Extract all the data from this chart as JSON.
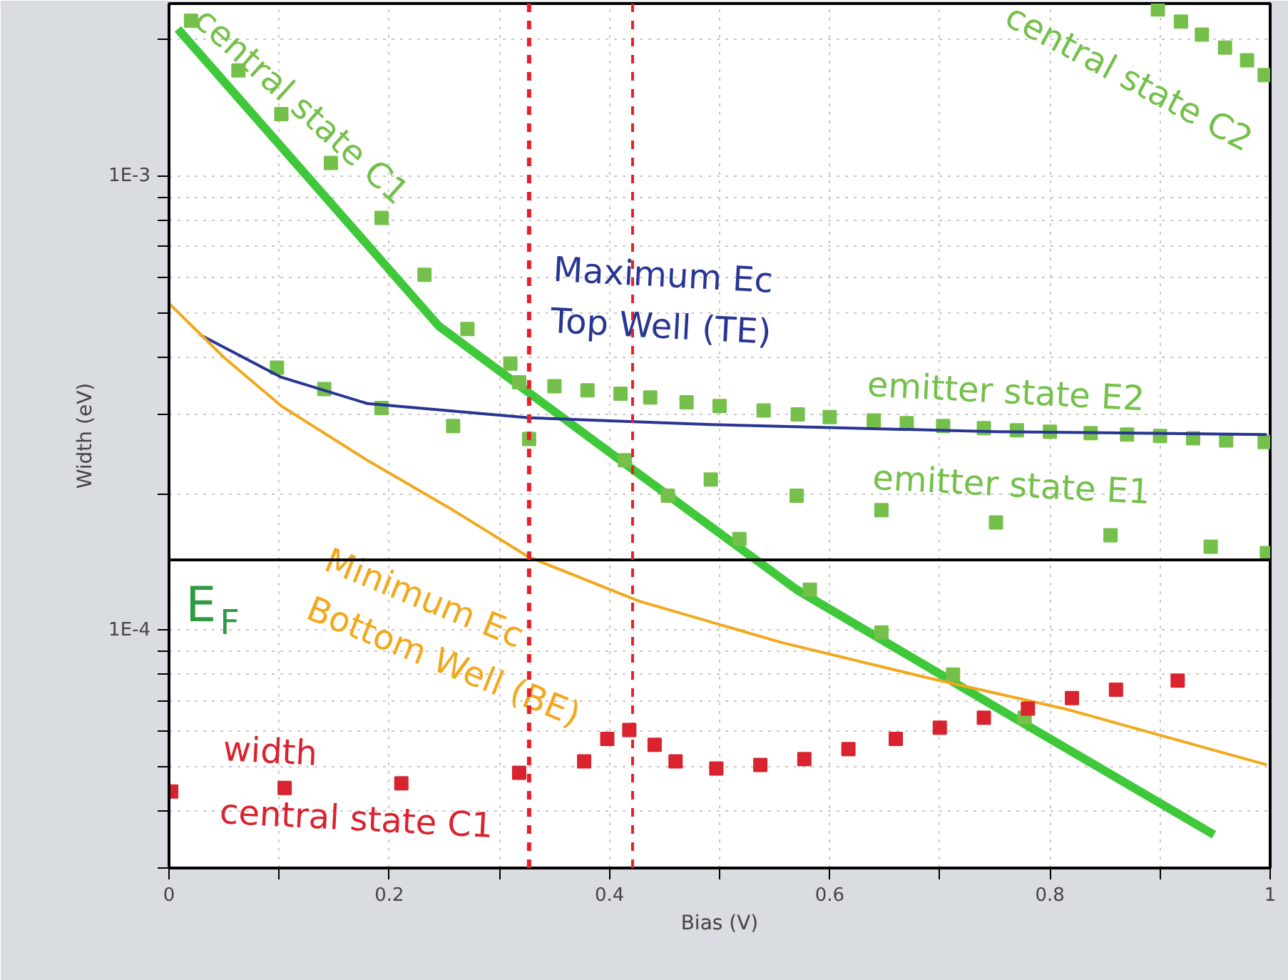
{
  "chart_data": {
    "type": "line",
    "xlabel": "Bias (V)",
    "ylabel": "Width (eV)",
    "log": "y",
    "grid": true,
    "xlim": [
      0,
      1
    ],
    "ylim": [
      3e-05,
      0.0024
    ],
    "xticks": [
      0,
      {
        "value": 0.1,
        "label": null
      },
      0.2,
      {
        "value": 0.3,
        "label": null
      },
      0.4,
      {
        "value": 0.5,
        "label": null
      },
      0.6,
      {
        "value": 0.7,
        "label": null
      },
      0.8,
      {
        "value": 0.9,
        "label": null
      },
      1
    ],
    "yticks": [
      {
        "value": 3e-05,
        "label": null
      },
      {
        "value": 4e-05,
        "label": null
      },
      {
        "value": 5e-05,
        "label": null
      },
      {
        "value": 6e-05,
        "label": null
      },
      {
        "value": 7e-05,
        "label": null
      },
      {
        "value": 8e-05,
        "label": null
      },
      {
        "value": 9e-05,
        "label": null
      },
      {
        "value": 0.0001,
        "label": "1E-4"
      },
      {
        "value": 0.0002,
        "label": null
      },
      {
        "value": 0.0003,
        "label": null
      },
      {
        "value": 0.0004,
        "label": null
      },
      {
        "value": 0.0005,
        "label": null
      },
      {
        "value": 0.0006,
        "label": null
      },
      {
        "value": 0.0007,
        "label": null
      },
      {
        "value": 0.0008,
        "label": null
      },
      {
        "value": 0.0009,
        "label": null
      },
      {
        "value": 0.001,
        "label": "1E-3"
      },
      {
        "value": 0.002,
        "label": null
      }
    ],
    "series": [
      {
        "line_style": "solid",
        "color": "#3ec83a",
        "x": [
          0.008,
          0.245,
          0.414,
          0.57,
          0.763,
          0.949
        ],
        "values": [
          0.00211,
          0.000468,
          0.000233,
          0.000123,
          6.52e-05,
          3.55e-05
        ]
      },
      {
        "type": "scatter",
        "marker": "square",
        "name": "central state C1",
        "color": "#74c04a",
        "x": [
          0.02,
          0.063,
          0.102,
          0.147,
          0.193,
          0.232,
          0.271,
          0.31,
          0.38,
          0.453,
          0.518,
          0.582,
          0.647,
          0.712,
          0.777
        ],
        "values": [
          0.0022,
          0.00171,
          0.00137,
          0.00107,
          0.00081,
          0.000607,
          0.000461,
          0.000387,
          null,
          0.000198,
          0.000159,
          0.000123,
          9.9e-05,
          8e-05,
          6.43e-05
        ]
      },
      {
        "type": "scatter",
        "marker": "square",
        "name": "central state C2",
        "color": "#74c04a",
        "x": [
          0.898,
          0.919,
          0.938,
          0.959,
          0.979,
          0.995
        ],
        "values": [
          0.00233,
          0.00219,
          0.00205,
          0.00192,
          0.0018,
          0.00167
        ]
      },
      {
        "type": "scatter",
        "marker": "square",
        "name": "emitter state E2",
        "color": "#74c04a",
        "x": [
          0.318,
          0.35,
          0.38,
          0.41,
          0.437,
          0.47,
          0.5,
          0.54,
          0.571,
          0.6,
          0.64,
          0.67,
          0.703,
          0.74,
          0.77,
          0.8,
          0.837,
          0.87,
          0.9,
          0.93,
          0.96,
          0.995
        ],
        "values": [
          0.000352,
          0.000345,
          0.000338,
          0.000332,
          0.000326,
          0.000318,
          0.000312,
          0.000305,
          0.000299,
          0.000295,
          0.00029,
          0.000286,
          0.000282,
          0.000279,
          0.000276,
          0.000274,
          0.000272,
          0.00027,
          0.000268,
          0.000265,
          0.000262,
          0.00026
        ]
      },
      {
        "type": "scatter",
        "marker": "square",
        "name": "emitter state E1",
        "color": "#74c04a",
        "x": [
          0.098,
          0.141,
          0.193,
          0.258,
          0.327,
          0.414,
          0.492,
          0.57,
          0.647,
          0.751,
          0.855,
          0.946,
          0.997
        ],
        "values": [
          0.000379,
          0.00034,
          0.000309,
          0.000282,
          0.000264,
          0.000237,
          0.000215,
          0.000198,
          0.000184,
          0.000173,
          0.000162,
          0.000153,
          0.000148
        ]
      },
      {
        "line_style": "solid",
        "name": "Maximum Ec\nTop Well (TE)",
        "color": "#283593",
        "x": [
          0.028,
          0.102,
          0.18,
          0.327,
          0.492,
          0.751,
          0.997
        ],
        "values": [
          0.000448,
          0.000361,
          0.000316,
          0.000294,
          0.000284,
          0.000274,
          0.00027
        ]
      },
      {
        "line_style": "solid",
        "name": "Minimum Ec\nBottom Well (BE)",
        "color": "#f2a81d",
        "x": [
          0,
          0.05,
          0.102,
          0.18,
          0.258,
          0.327,
          0.427,
          0.557,
          0.686,
          0.816,
          0.997
        ],
        "values": [
          0.000525,
          0.000399,
          0.000312,
          0.000237,
          0.000184,
          0.000145,
          0.000116,
          9.4e-05,
          7.9e-05,
          6.7e-05,
          5.06e-05
        ]
      },
      {
        "type": "scatter",
        "marker": "square",
        "name": "width\ncentral state C1",
        "color": "#d9232e",
        "x": [
          0.002,
          0.105,
          0.211,
          0.318,
          0.377,
          0.398,
          0.418,
          0.441,
          0.46,
          0.497,
          0.537,
          0.577,
          0.617,
          0.66,
          0.7,
          0.74,
          0.78,
          0.82,
          0.86,
          0.916
        ],
        "values": [
          4.42e-05,
          4.5e-05,
          4.61e-05,
          4.86e-05,
          5.15e-05,
          5.77e-05,
          6.04e-05,
          5.6e-05,
          5.15e-05,
          4.97e-05,
          5.06e-05,
          5.21e-05,
          5.48e-05,
          5.77e-05,
          6.11e-05,
          6.43e-05,
          6.73e-05,
          7.1e-05,
          7.41e-05,
          7.76e-05
        ]
      }
    ],
    "ref_lines": [
      {
        "axis": "y",
        "value": 0.000143,
        "label": "E$_{F}$",
        "color": "#000000",
        "line_style": "solid"
      },
      {
        "axis": "x",
        "value": 0.327,
        "color": "#e8202a",
        "line_style": "dashed"
      },
      {
        "axis": "x",
        "value": 0.421,
        "color": "#e8202a",
        "line_style": "dashed"
      }
    ]
  }
}
